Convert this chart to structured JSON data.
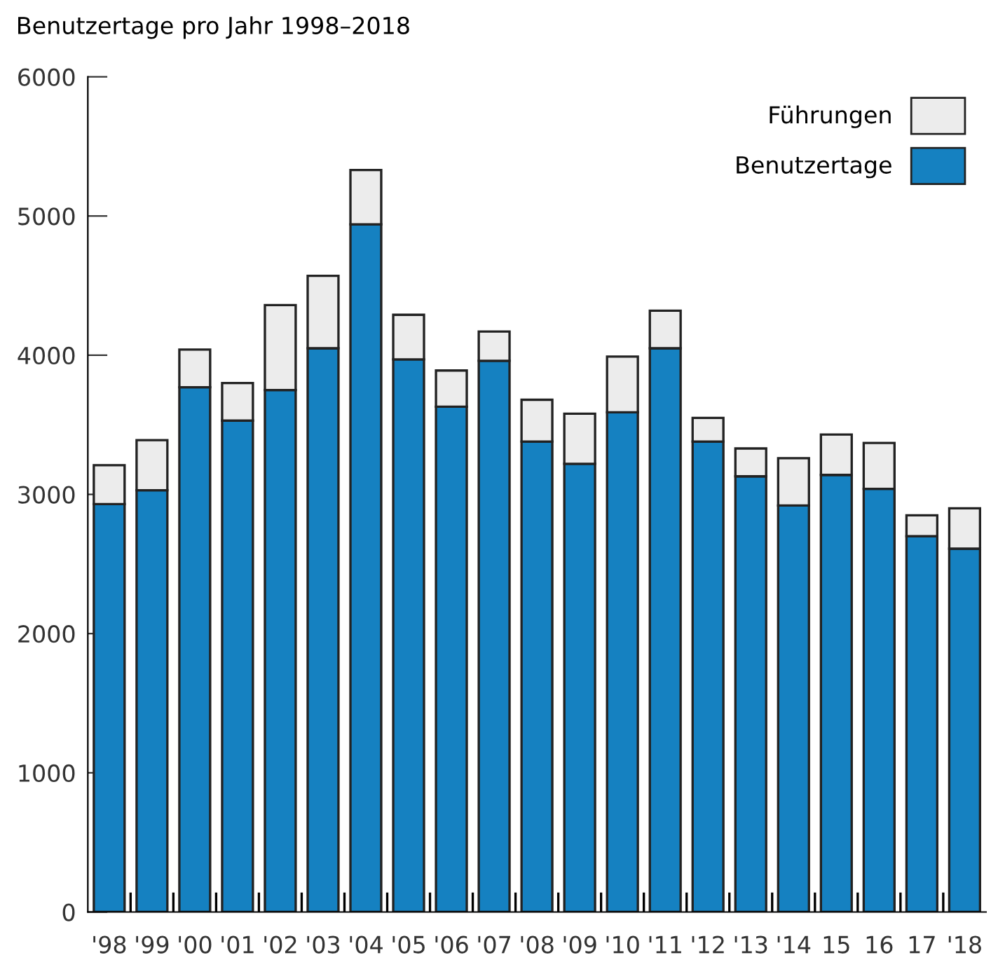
{
  "chart_data": {
    "type": "bar",
    "title": "Benutzertage pro Jahr 1998–2018",
    "stacked": true,
    "categories": [
      "'98",
      "'99",
      "'00",
      "'01",
      "'02",
      "'03",
      "'04",
      "'05",
      "'06",
      "'07",
      "'08",
      "'09",
      "'10",
      "'11",
      "'12",
      "'13",
      "'14",
      "15",
      "16",
      "17",
      "'18"
    ],
    "series": [
      {
        "name": "Benutzertage",
        "color": "#1581c1",
        "values": [
          2930,
          3030,
          3770,
          3530,
          3750,
          4050,
          4940,
          3970,
          3630,
          3960,
          3380,
          3220,
          3590,
          4050,
          3380,
          3130,
          2920,
          3140,
          3040,
          2700,
          2610
        ]
      },
      {
        "name": "Führungen",
        "color": "#ececec",
        "values": [
          280,
          360,
          270,
          270,
          610,
          520,
          390,
          320,
          260,
          210,
          300,
          360,
          400,
          270,
          170,
          200,
          340,
          290,
          330,
          150,
          290
        ]
      }
    ],
    "ylim": [
      0,
      6000
    ],
    "yticks": [
      0,
      1000,
      2000,
      3000,
      4000,
      5000,
      6000
    ],
    "grid": false,
    "legend": "top right"
  }
}
